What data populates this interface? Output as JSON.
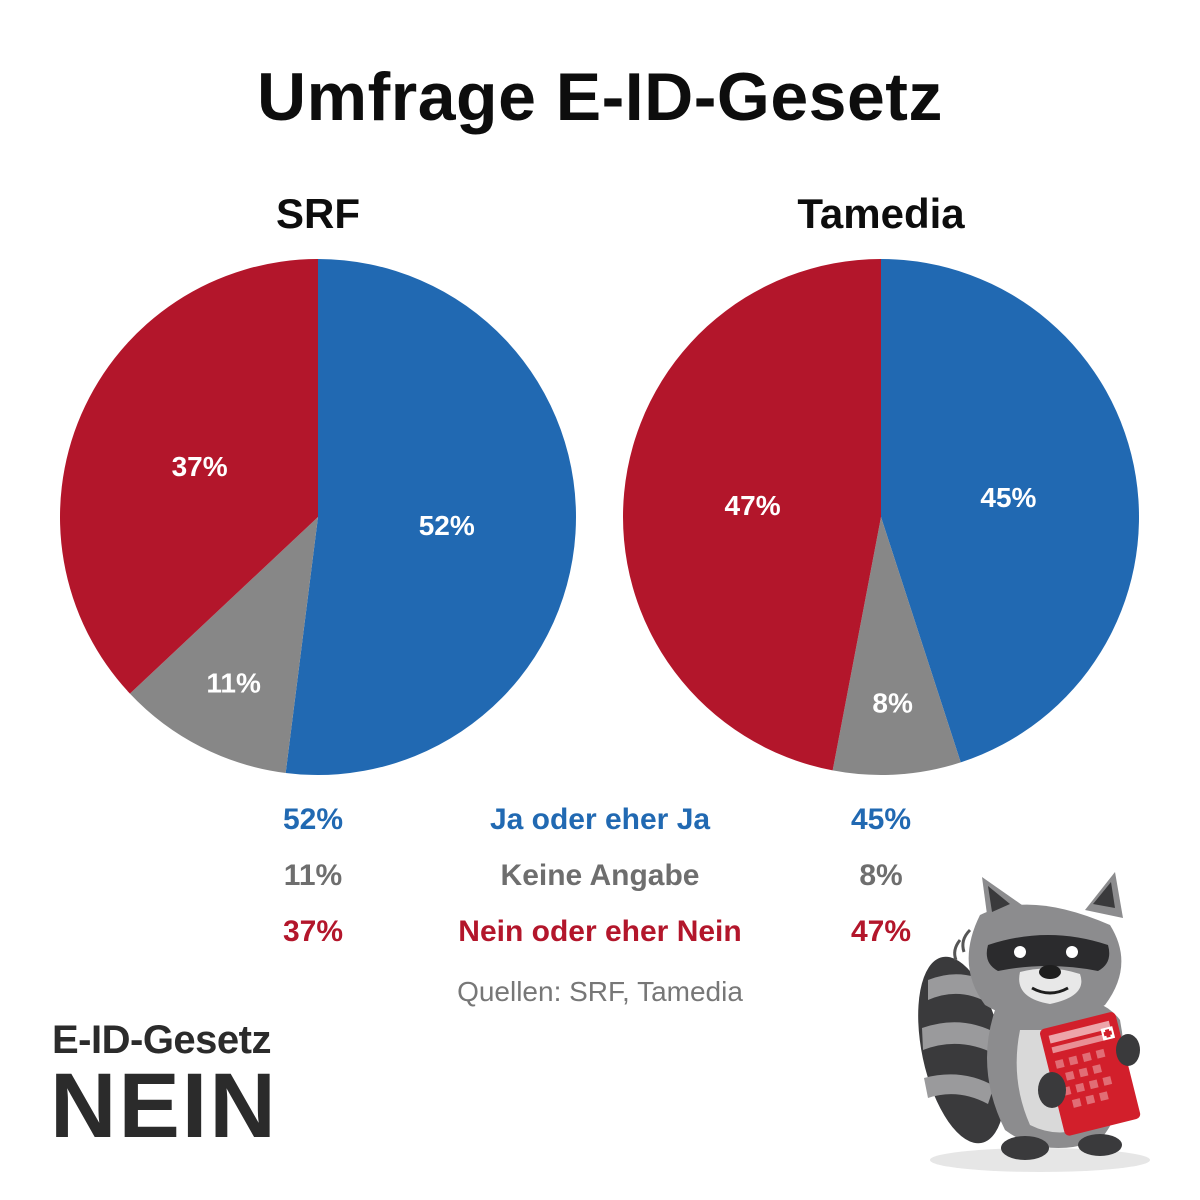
{
  "title": "Umfrage E-ID-Gesetz",
  "colors": {
    "ja": "#2169b2",
    "keine": "#878787",
    "nein": "#b3162b"
  },
  "chart_data": [
    {
      "type": "pie",
      "title": "SRF",
      "slices": [
        {
          "name": "Ja oder eher Ja",
          "value": 52,
          "label": "52%",
          "color": "#2169b2"
        },
        {
          "name": "Keine Angabe",
          "value": 11,
          "label": "11%",
          "color": "#878787"
        },
        {
          "name": "Nein oder eher Nein",
          "value": 37,
          "label": "37%",
          "color": "#b3162b"
        }
      ]
    },
    {
      "type": "pie",
      "title": "Tamedia",
      "slices": [
        {
          "name": "Ja oder eher Ja",
          "value": 45,
          "label": "45%",
          "color": "#2169b2"
        },
        {
          "name": "Keine Angabe",
          "value": 8,
          "label": "8%",
          "color": "#878787"
        },
        {
          "name": "Nein oder eher Nein",
          "value": 47,
          "label": "47%",
          "color": "#b3162b"
        }
      ]
    }
  ],
  "legend": [
    {
      "srf": "52%",
      "label": "Ja oder eher Ja",
      "tamedia": "45%",
      "color": "#2169b2"
    },
    {
      "srf": "11%",
      "label": "Keine Angabe",
      "tamedia": "8%",
      "color": "#6e6e6e"
    },
    {
      "srf": "37%",
      "label": "Nein oder eher Nein",
      "tamedia": "47%",
      "color": "#b3162b"
    }
  ],
  "source": "Quellen: SRF, Tamedia",
  "brand": {
    "line1": "E-ID-Gesetz",
    "line2": "NEIN"
  },
  "mascot": {
    "icon": "raccoon-holding-passport-icon"
  }
}
